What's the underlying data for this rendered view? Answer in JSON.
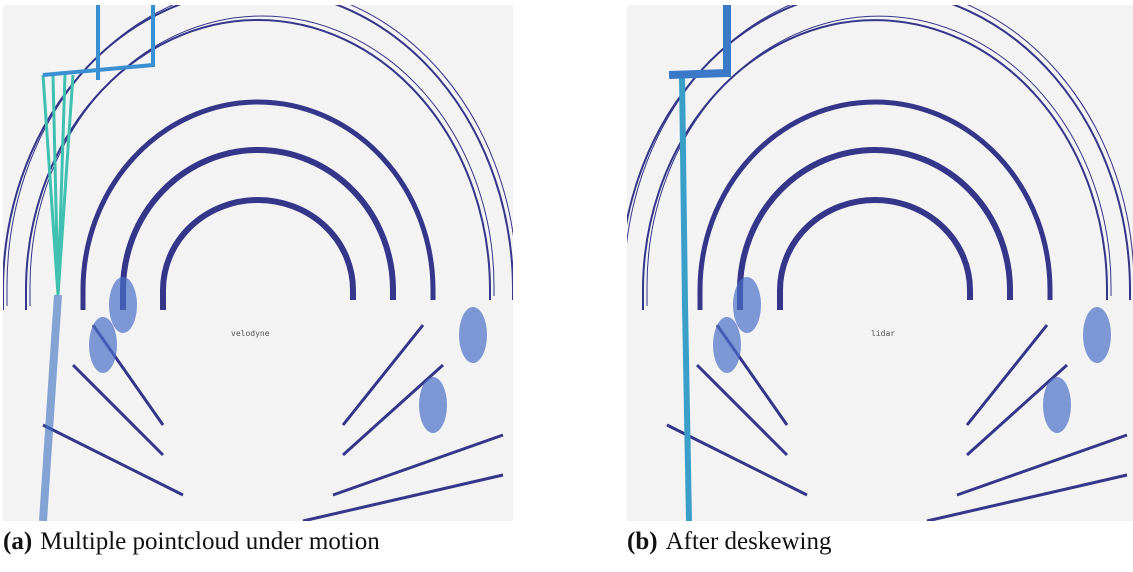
{
  "figure": {
    "panels": [
      {
        "label": "(a)",
        "caption": "Multiple pointcloud under motion",
        "frame_label": "velodyne"
      },
      {
        "label": "(b)",
        "caption": "After deskewing",
        "frame_label": "lidar"
      }
    ]
  }
}
